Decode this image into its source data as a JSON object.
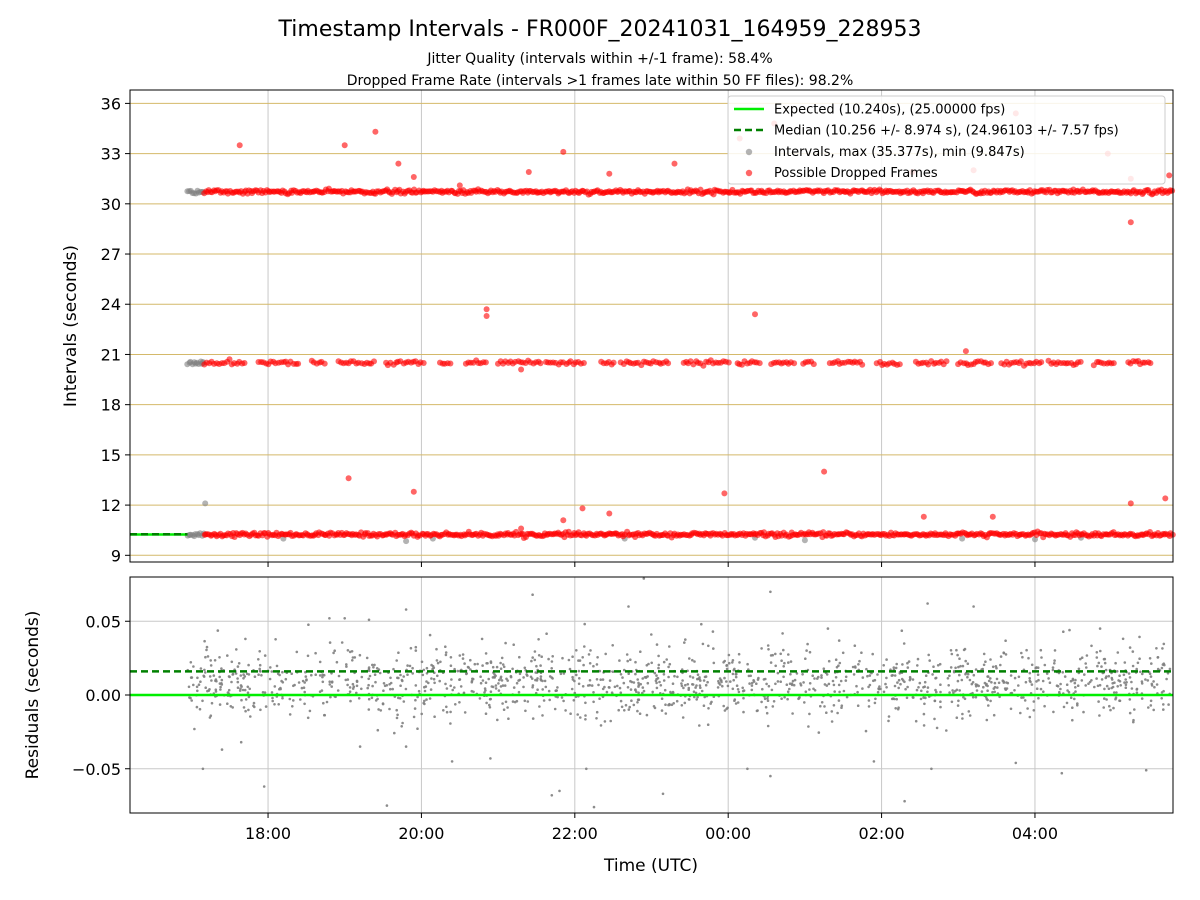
{
  "title": "Timestamp Intervals - FR000F_20241031_164959_228953",
  "subtitle_1": "Jitter Quality (intervals within +/-1 frame): 58.4%",
  "subtitle_2": "Dropped Frame Rate (intervals >1 frames late within 50 FF files): 98.2%",
  "colors": {
    "expected": "#00ee00",
    "median": "#008000",
    "intervals": "#808080",
    "dropped": "#ff0000",
    "hgrid_top": "#d4b96a",
    "grid": "#c8c8c8"
  },
  "chart_data": [
    {
      "type": "scatter",
      "name": "top-panel",
      "xlabel": "",
      "ylabel": "Intervals (seconds)",
      "x_unit": "hours_relative_to_midnight_utc",
      "xlim": [
        -7.8,
        5.8
      ],
      "ylim": [
        8.6,
        36.8
      ],
      "yticks": [
        9,
        12,
        15,
        18,
        21,
        24,
        27,
        30,
        33,
        36
      ],
      "ytick_labels": [
        "9",
        "12",
        "15",
        "18",
        "21",
        "24",
        "27",
        "30",
        "33",
        "36"
      ],
      "grid": true,
      "legend_position": "top-right",
      "legend": [
        {
          "label": "Expected (10.240s), (25.00000 fps)",
          "style": "line",
          "color": "#00ee00"
        },
        {
          "label": "Median (10.256 +/- 8.974 s), (24.96103 +/- 7.57 fps)",
          "style": "dashed",
          "color": "#008000"
        },
        {
          "label": "Intervals, max (35.377s), min (9.847s)",
          "style": "dot",
          "color": "#808080"
        },
        {
          "label": "Possible Dropped Frames",
          "style": "dot",
          "color": "#ff0000"
        }
      ],
      "series": [
        {
          "name": "Expected (10.240s), (25.00000 fps)",
          "kind": "hline",
          "y": 10.24,
          "x_range": [
            -7.8,
            -7.05
          ]
        },
        {
          "name": "Median (10.256 +/- 8.974 s), (24.96103 +/- 7.57 fps)",
          "kind": "hline_dashed",
          "y": 10.256,
          "x_range": [
            -7.8,
            -7.05
          ]
        },
        {
          "name": "Intervals, max (35.377s), min (9.847s)",
          "kind": "band",
          "x_range": [
            -7.05,
            -6.83
          ],
          "y_levels": [
            10.24,
            20.5,
            30.72
          ],
          "spread": 0.06
        },
        {
          "name": "Intervals, max (35.377s), min (9.847s)",
          "kind": "points",
          "points": [
            [
              -6.82,
              12.1
            ],
            [
              -6.85,
              20.55
            ],
            [
              -5.8,
              10.0
            ],
            [
              -4.2,
              9.85
            ],
            [
              -3.85,
              10.0
            ],
            [
              -1.35,
              10.0
            ],
            [
              0.35,
              10.05
            ],
            [
              1.0,
              9.9
            ],
            [
              3.05,
              10.0
            ],
            [
              4.0,
              9.95
            ],
            [
              4.6,
              10.05
            ]
          ]
        },
        {
          "name": "Possible Dropped Frames",
          "kind": "band",
          "x_range": [
            -6.83,
            5.8
          ],
          "y_levels": [
            10.24,
            30.72
          ],
          "spread": 0.06
        },
        {
          "name": "Possible Dropped Frames",
          "kind": "band_sparse",
          "x_range": [
            -6.83,
            5.7
          ],
          "y_levels": [
            20.5
          ],
          "spread": 0.06
        },
        {
          "name": "Possible Dropped Frames",
          "kind": "points",
          "points": [
            [
              -6.37,
              33.5
            ],
            [
              -5.0,
              33.5
            ],
            [
              -4.6,
              34.3
            ],
            [
              -4.3,
              32.4
            ],
            [
              -4.1,
              31.6
            ],
            [
              -3.5,
              31.1
            ],
            [
              -2.6,
              31.9
            ],
            [
              -2.15,
              33.1
            ],
            [
              -1.55,
              31.8
            ],
            [
              -0.7,
              32.4
            ],
            [
              0.15,
              33.9
            ],
            [
              0.6,
              34.8
            ],
            [
              2.4,
              31.9
            ],
            [
              3.2,
              32.0
            ],
            [
              3.75,
              35.4
            ],
            [
              4.95,
              33.0
            ],
            [
              5.25,
              31.5
            ],
            [
              5.25,
              28.9
            ],
            [
              5.75,
              31.7
            ],
            [
              -3.15,
              23.7
            ],
            [
              -3.15,
              23.3
            ],
            [
              0.35,
              23.4
            ],
            [
              3.1,
              21.2
            ],
            [
              -2.7,
              20.1
            ],
            [
              -4.95,
              13.6
            ],
            [
              -4.1,
              12.8
            ],
            [
              -0.05,
              12.7
            ],
            [
              1.25,
              14.0
            ],
            [
              -1.9,
              11.8
            ],
            [
              -1.55,
              11.5
            ],
            [
              -2.15,
              11.1
            ],
            [
              2.55,
              11.3
            ],
            [
              3.45,
              11.3
            ],
            [
              5.25,
              12.1
            ],
            [
              5.7,
              12.4
            ],
            [
              -2.7,
              10.6
            ]
          ]
        }
      ]
    },
    {
      "type": "scatter",
      "name": "bottom-panel",
      "xlabel": "Time (UTC)",
      "ylabel": "Residuals (seconds)",
      "x_unit": "hours_relative_to_midnight_utc",
      "xlim": [
        -7.8,
        5.8
      ],
      "ylim": [
        -0.08,
        0.08
      ],
      "yticks": [
        -0.05,
        0.0,
        0.05
      ],
      "ytick_labels": [
        "−0.05",
        "0.00",
        "0.05"
      ],
      "xticks": [
        -6,
        -4,
        -2,
        0,
        2,
        4
      ],
      "xtick_labels": [
        "18:00",
        "20:00",
        "22:00",
        "00:00",
        "02:00",
        "04:00"
      ],
      "grid": true,
      "series": [
        {
          "name": "Expected",
          "kind": "hline",
          "y": 0.0
        },
        {
          "name": "Median",
          "kind": "hline_dashed",
          "y": 0.016
        },
        {
          "name": "Residuals",
          "kind": "noise",
          "x_range": [
            -7.05,
            5.8
          ],
          "mean": 0.008,
          "sd": 0.012,
          "count": 1500
        },
        {
          "name": "Residuals",
          "kind": "points",
          "points": [
            [
              -6.85,
              -0.05
            ],
            [
              -6.6,
              -0.037
            ],
            [
              -6.35,
              -0.032
            ],
            [
              -6.05,
              -0.062
            ],
            [
              -5.0,
              0.052
            ],
            [
              -4.45,
              -0.075
            ],
            [
              -4.2,
              0.058
            ],
            [
              -4.2,
              -0.035
            ],
            [
              -3.1,
              -0.043
            ],
            [
              -2.55,
              0.068
            ],
            [
              -2.3,
              -0.068
            ],
            [
              -2.2,
              -0.065
            ],
            [
              -1.85,
              -0.05
            ],
            [
              -1.75,
              -0.076
            ],
            [
              -1.3,
              0.06
            ],
            [
              -0.85,
              -0.067
            ],
            [
              -0.35,
              0.048
            ],
            [
              0.25,
              -0.05
            ],
            [
              0.55,
              -0.055
            ],
            [
              0.55,
              0.07
            ],
            [
              1.3,
              0.045
            ],
            [
              2.3,
              -0.072
            ],
            [
              2.6,
              0.062
            ],
            [
              2.65,
              -0.05
            ],
            [
              3.2,
              0.06
            ],
            [
              3.75,
              -0.046
            ],
            [
              4.35,
              -0.053
            ],
            [
              4.85,
              0.045
            ],
            [
              5.45,
              -0.051
            ],
            [
              -4.8,
              -0.035
            ],
            [
              -5.2,
              0.052
            ],
            [
              -3.6,
              -0.045
            ],
            [
              -0.2,
              0.043
            ],
            [
              1.9,
              -0.045
            ],
            [
              4.45,
              0.044
            ],
            [
              -1.1,
              0.079
            ]
          ]
        }
      ]
    }
  ]
}
